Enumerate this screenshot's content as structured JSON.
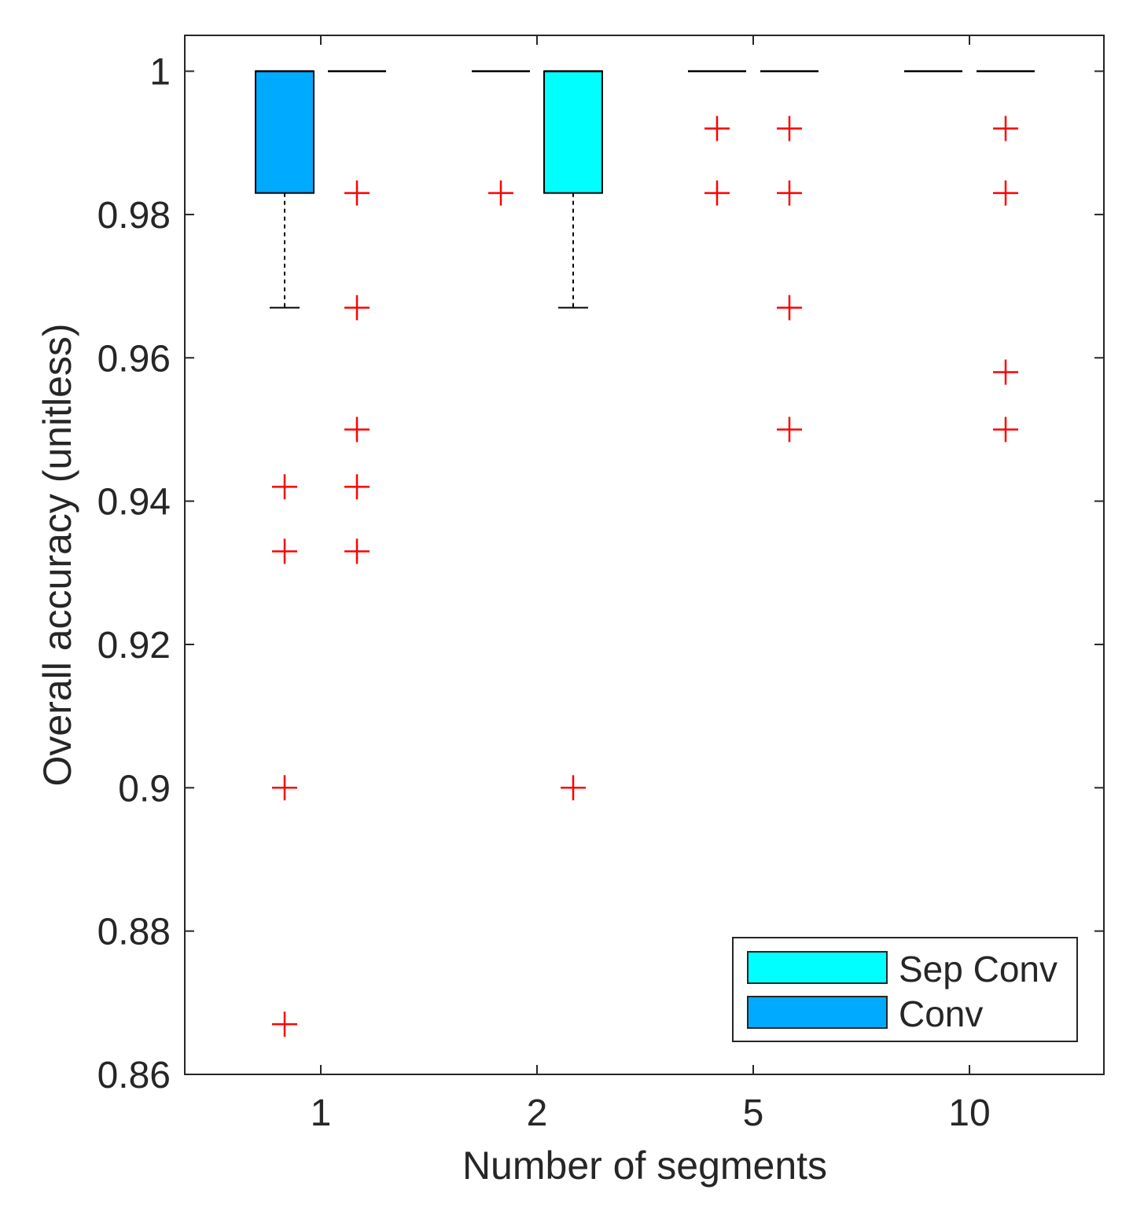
{
  "chart_data": {
    "type": "boxplot",
    "xlabel": "Number of segments",
    "ylabel": "Overall accuracy (unitless)",
    "ylim": [
      0.86,
      1.005
    ],
    "yticks": [
      0.86,
      0.88,
      0.9,
      0.92,
      0.94,
      0.96,
      0.98,
      1
    ],
    "ytick_labels": [
      "0.86",
      "0.88",
      "0.9",
      "0.92",
      "0.94",
      "0.96",
      "0.98",
      "1"
    ],
    "categories": [
      "1",
      "2",
      "5",
      "10"
    ],
    "legend": {
      "location": "bottom-right",
      "entries": [
        {
          "label": "Sep Conv",
          "color": "#00FFFF"
        },
        {
          "label": "Conv",
          "color": "#00AAFF"
        }
      ]
    },
    "outlier_color": "#FF0000",
    "boxes": [
      {
        "category": "1",
        "series": "Conv",
        "slot": "left",
        "color": "#00AAFF",
        "q1": 0.983,
        "median": 1.0,
        "q3": 1.0,
        "whisker_low": 0.967,
        "whisker_high": 1.0,
        "outliers": [
          0.942,
          0.933,
          0.9,
          0.867
        ]
      },
      {
        "category": "1",
        "series": "Sep Conv",
        "slot": "right",
        "color": "#00FFFF",
        "q1": 1.0,
        "median": 1.0,
        "q3": 1.0,
        "whisker_low": 1.0,
        "whisker_high": 1.0,
        "outliers": [
          0.983,
          0.967,
          0.95,
          0.942,
          0.933
        ]
      },
      {
        "category": "2",
        "series": "Conv",
        "slot": "left",
        "color": "#00AAFF",
        "q1": 1.0,
        "median": 1.0,
        "q3": 1.0,
        "whisker_low": 1.0,
        "whisker_high": 1.0,
        "outliers": [
          0.983
        ]
      },
      {
        "category": "2",
        "series": "Sep Conv",
        "slot": "right",
        "color": "#00FFFF",
        "q1": 0.983,
        "median": 1.0,
        "q3": 1.0,
        "whisker_low": 0.967,
        "whisker_high": 1.0,
        "outliers": [
          0.9
        ]
      },
      {
        "category": "5",
        "series": "Conv",
        "slot": "left",
        "color": "#00AAFF",
        "q1": 1.0,
        "median": 1.0,
        "q3": 1.0,
        "whisker_low": 1.0,
        "whisker_high": 1.0,
        "outliers": [
          0.992,
          0.983
        ]
      },
      {
        "category": "5",
        "series": "Sep Conv",
        "slot": "right",
        "color": "#00FFFF",
        "q1": 1.0,
        "median": 1.0,
        "q3": 1.0,
        "whisker_low": 1.0,
        "whisker_high": 1.0,
        "outliers": [
          0.992,
          0.983,
          0.967,
          0.95
        ]
      },
      {
        "category": "10",
        "series": "Conv",
        "slot": "left",
        "color": "#00AAFF",
        "q1": 1.0,
        "median": 1.0,
        "q3": 1.0,
        "whisker_low": 1.0,
        "whisker_high": 1.0,
        "outliers": []
      },
      {
        "category": "10",
        "series": "Sep Conv",
        "slot": "right",
        "color": "#00FFFF",
        "q1": 1.0,
        "median": 1.0,
        "q3": 1.0,
        "whisker_low": 1.0,
        "whisker_high": 1.0,
        "outliers": [
          0.992,
          0.983,
          0.958,
          0.95
        ]
      }
    ]
  }
}
